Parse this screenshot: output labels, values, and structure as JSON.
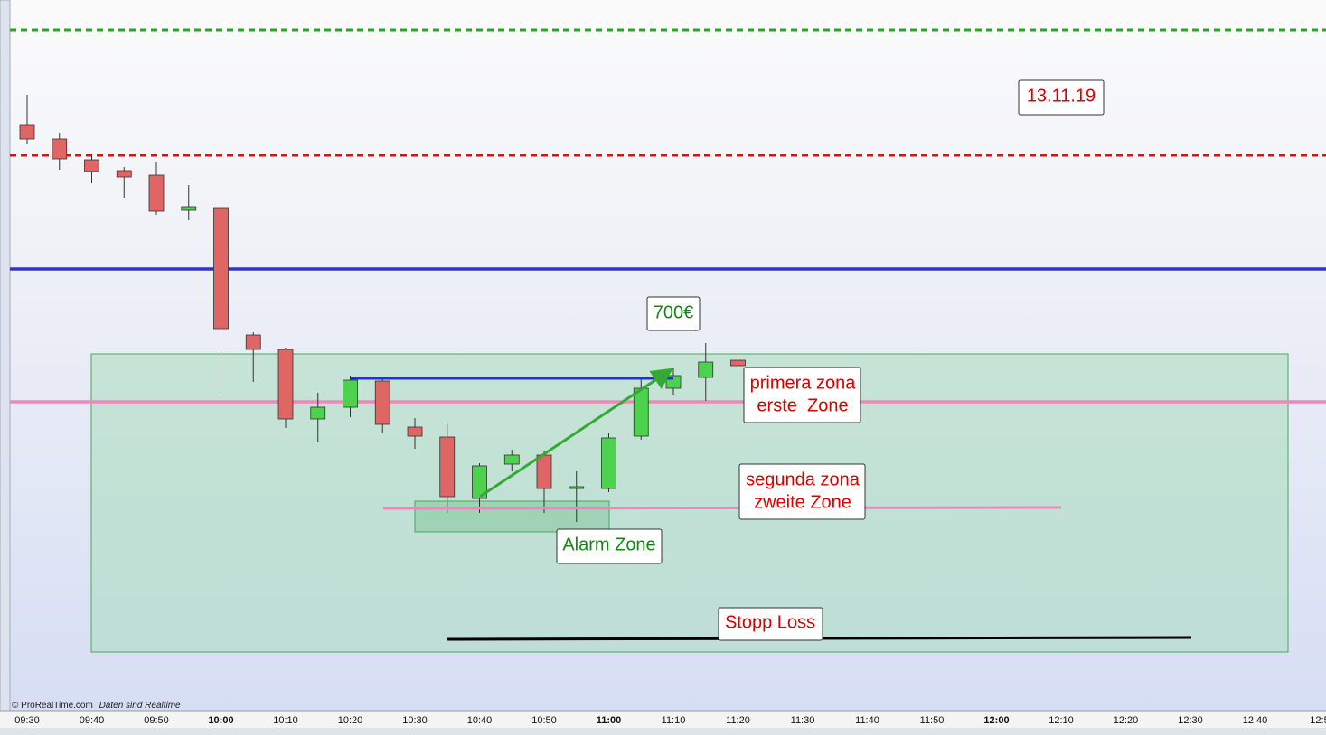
{
  "chart_data": {
    "type": "candlestick",
    "watermark": "© ProRealTime.com",
    "watermark_note": "Daten sind Realtime",
    "categories": [
      "09:30",
      null,
      "09:40",
      null,
      "09:50",
      null,
      "10:00",
      null,
      "10:10",
      null,
      "10:20",
      null,
      "10:30",
      null,
      "10:40",
      null,
      "10:50",
      null,
      "11:00",
      null,
      "11:10",
      null,
      "11:20",
      null,
      "11:30",
      null,
      "11:40",
      null,
      "11:50",
      null,
      "12:00",
      null,
      "12:10",
      null,
      "12:20",
      null,
      "12:30",
      null,
      "12:40",
      null,
      "12:5"
    ],
    "open": [
      662,
      646,
      623,
      611,
      606,
      567,
      570,
      429,
      413,
      336,
      349,
      378,
      327,
      316,
      248,
      286,
      296,
      259,
      259,
      317,
      370,
      382,
      401,
      null,
      null,
      null,
      null,
      null,
      null,
      null,
      null,
      null,
      null,
      null,
      null,
      null,
      null,
      null,
      null,
      null,
      null
    ],
    "high": [
      695,
      653,
      630,
      615,
      621,
      595,
      575,
      432,
      415,
      365,
      384,
      382,
      337,
      332,
      287,
      302,
      300,
      278,
      320,
      380,
      393,
      420,
      407,
      null,
      null,
      null,
      null,
      null,
      null,
      null,
      null,
      null,
      null,
      null,
      null,
      null,
      null,
      null,
      null,
      null,
      null
    ],
    "low": [
      640,
      612,
      597,
      581,
      562,
      556,
      367,
      377,
      326,
      310,
      338,
      320,
      303,
      232,
      232,
      278,
      232,
      222,
      255,
      313,
      363,
      356,
      390,
      null,
      null,
      null,
      null,
      null,
      null,
      null,
      null,
      null,
      null,
      null,
      null,
      null,
      null,
      null,
      null,
      null,
      null
    ],
    "close": [
      646,
      624,
      610,
      604,
      566,
      571,
      436,
      413,
      336,
      349,
      379,
      330,
      317,
      250,
      284,
      296,
      259,
      261,
      315,
      370,
      384,
      399,
      395,
      null,
      null,
      null,
      null,
      null,
      null,
      null,
      null,
      null,
      null,
      null,
      null,
      null,
      null,
      null,
      null,
      null,
      null
    ],
    "up_color": "#4cd24c",
    "down_color": "#e06666",
    "ylim": [
      15,
      800
    ],
    "levels": [
      {
        "value": 767,
        "color": "#22aa22",
        "style": "dashed"
      },
      {
        "value": 628,
        "color": "#dd1111",
        "style": "dashed"
      },
      {
        "value": 502,
        "color": "#3333cc",
        "style": "solid"
      },
      {
        "value": 355,
        "color": "#ee88bb",
        "style": "solid"
      }
    ],
    "annotations": [
      {
        "lines": [
          "13.11.19"
        ]
      },
      {
        "lines": [
          "700€"
        ]
      },
      {
        "lines": [
          "primera zona",
          "erste  Zone"
        ]
      },
      {
        "lines": [
          "segunda zona",
          "zweite Zone"
        ]
      },
      {
        "lines": [
          "Alarm Zone"
        ]
      },
      {
        "lines": [
          "Stopp Loss"
        ]
      }
    ]
  }
}
